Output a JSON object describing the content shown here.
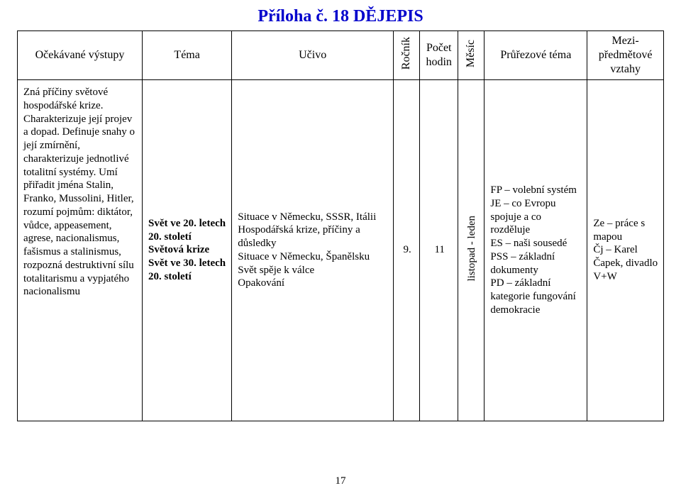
{
  "title": "Příloha č. 18  DĚJEPIS",
  "headers": {
    "c1": "Očekávané výstupy",
    "c2": "Téma",
    "c3": "Učivo",
    "c4": "Ročník",
    "c5_l1": "Počet",
    "c5_l2": "hodin",
    "c6": "Měsíc",
    "c7": "Průřezové téma",
    "c8_l1": "Mezi-",
    "c8_l2": "předmětové",
    "c8_l3": "vztahy"
  },
  "row": {
    "vystupy": "Zná příčiny světové hospodářské krize. Charakterizuje její projev a dopad. Definuje snahy o její zmírnění, charakterizuje jednotlivé totalitní systémy. Umí přiřadit jména Stalin, Franko, Mussolini, Hitler, rozumí pojmům: diktátor, vůdce, appeasement, agrese, nacionalismus, fašismus a stalinismus, rozpozná destruktivní sílu totalitarismu a vypjatého nacionalismu",
    "tema_l1": "Svět ve 20. letech",
    "tema_l2": "20. století",
    "tema_l3": "Světová krize",
    "tema_l4": "Svět ve 30. letech",
    "tema_l5": "20. století",
    "ucivo_l1": "Situace v Německu, SSSR, Itálii",
    "ucivo_l2": "Hospodářská krize, příčiny a důsledky",
    "ucivo_l3": "Situace v Německu, Španělsku",
    "ucivo_l4": "Svět spěje k válce",
    "ucivo_l5": "Opakování",
    "rocnik": "9.",
    "hodin": "11",
    "mesic": "listopad - leden",
    "prurez_l1": "FP – volební systém",
    "prurez_l2": "JE – co Evropu spojuje a co rozděluje",
    "prurez_l3": "ES – naši sousedé",
    "prurez_l4": "PSS – základní dokumenty",
    "prurez_l5": "PD – základní kategorie fungování demokracie",
    "vztahy_l1": "Ze – práce s mapou",
    "vztahy_l2": "Čj – Karel Čapek, divadlo V+W"
  },
  "pagenum": "17",
  "colors": {
    "title": "#0000cc",
    "text": "#000000",
    "border": "#000000",
    "background": "#ffffff"
  },
  "fonts": {
    "family": "Times New Roman",
    "title_size_pt": 18,
    "header_size_pt": 12,
    "body_size_pt": 11
  }
}
